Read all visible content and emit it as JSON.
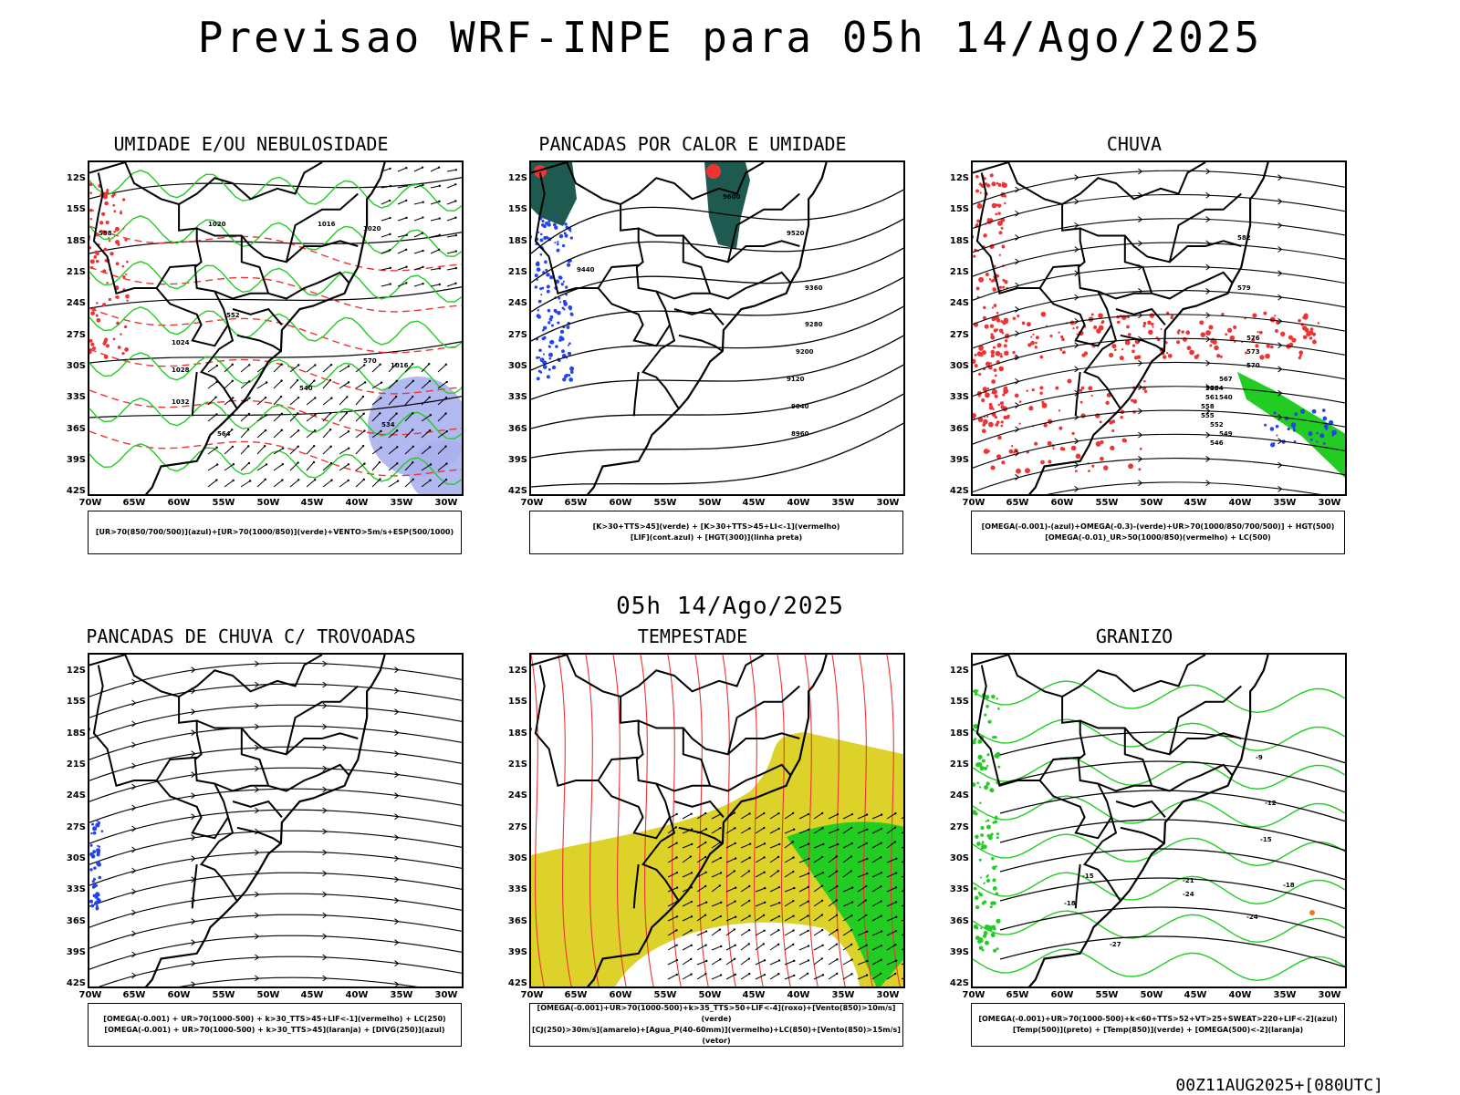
{
  "title": "Previsao WRF-INPE  para 05h 14/Ago/2025",
  "mid_title": "05h 14/Ago/2025",
  "footer": "00Z11AUG2025+[080UTC]",
  "axes": {
    "lat": [
      "12S",
      "15S",
      "18S",
      "21S",
      "24S",
      "27S",
      "30S",
      "33S",
      "36S",
      "39S",
      "42S"
    ],
    "lon": [
      "70W",
      "65W",
      "60W",
      "55W",
      "50W",
      "45W",
      "40W",
      "35W",
      "30W"
    ]
  },
  "colors": {
    "green": "#22cc22",
    "red": "#ee3333",
    "blue": "#2244ee",
    "lavender": "#aab0ee",
    "teal": "#1f5a50",
    "yellow": "#ddd22a",
    "orange": "#ee7722"
  },
  "panels": [
    {
      "id": "umidade",
      "title": "UMIDADE E/OU NEBULOSIDADE",
      "legend": [
        "[UR>70(850/700/500)](azul)+[UR>70(1000/850)](verde)+VENTO>5m/s+ESP(500/1000)"
      ],
      "contour_labels": [
        "1020",
        "1016",
        "1024",
        "1028",
        "1032",
        "1020",
        "1016",
        "564",
        "552",
        "540",
        "534",
        "570",
        "558"
      ]
    },
    {
      "id": "pancadas",
      "title": "PANCADAS POR CALOR E UMIDADE",
      "legend": [
        "[K>30+TTS>45](verde) + [K>30+TTS>45+LI<-1](vermelho)",
        "[LIF](cont.azul) + [HGT(300)](linha preta)"
      ],
      "contour_labels": [
        "9600",
        "9520",
        "9440",
        "9360",
        "9280",
        "9200",
        "9120",
        "9040",
        "8960"
      ]
    },
    {
      "id": "chuva",
      "title": "CHUVA",
      "legend": [
        "[OMEGA(-0.001)-(azul)+OMEGA(-0.3)-(verde)+UR>70(1000/850/700/500)] + HGT(500)",
        "[OMEGA(-0.01)_UR>50(1000/850)(vermelho) + LC(500)"
      ],
      "contour_labels": [
        "582",
        "579",
        "576",
        "573",
        "570",
        "567",
        "564",
        "561",
        "558",
        "555",
        "552",
        "549",
        "546",
        "543",
        "540"
      ]
    },
    {
      "id": "trovoadas",
      "title": "PANCADAS DE CHUVA C/ TROVOADAS",
      "legend": [
        "[OMEGA(-0.001) + UR>70(1000-500) + k>30_TTS>45+LIF<-1](vermelho) + LC(250)",
        "[OMEGA(-0.001) + UR>70(1000-500) + k>30_TTS>45](laranja) + [DIVG(250)](azul)"
      ],
      "contour_labels": []
    },
    {
      "id": "tempestade",
      "title": "TEMPESTADE",
      "legend": [
        "[OMEGA(-0.001)+UR>70(1000-500)+k>35_TTS>50+LIF<-4](roxo)+[Vento(850)>10m/s](verde)",
        "[CJ(250)>30m/s](amarelo)+[Agua_P(40-60mm)](vermelho)+LC(850)+[Vento(850)>15m/s](vetor)"
      ],
      "contour_labels": []
    },
    {
      "id": "granizo",
      "title": "GRANIZO",
      "legend": [
        "[OMEGA(-0.001)+UR>70(1000-500)+k<60+TTS>52+VT>25+SWEAT>220+LIF<-2](azul)",
        "[Temp(500)](preto) + [Temp(850)](verde) + [OMEGA(500)<-2](laranja)"
      ],
      "contour_labels": [
        "-9",
        "-12",
        "-15",
        "-15",
        "-18",
        "-18",
        "-21",
        "-24",
        "-24",
        "-27"
      ]
    }
  ]
}
